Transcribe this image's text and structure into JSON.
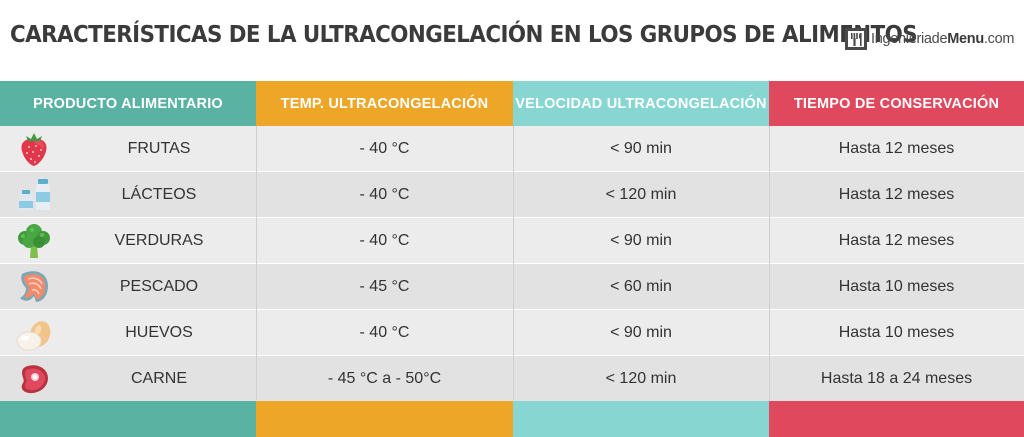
{
  "title": "CARACTERÍSTICAS DE LA ULTRACONGELACIÓN EN LOS GRUPOS DE ALIMENTOS",
  "logo": {
    "prefix": "Ingenieriade",
    "bold": "Menu",
    "suffix": ".com"
  },
  "colors": {
    "teal": "#5ab2a2",
    "orange": "#eda628",
    "aqua": "#88d6d2",
    "red": "#e0485e"
  },
  "headers": [
    "PRODUCTO ALIMENTARIO",
    "TEMP. ULTRACONGELACIÓN",
    "VELOCIDAD ULTRACONGELACIÓN",
    "TIEMPO DE CONSERVACIÓN"
  ],
  "rows": [
    {
      "icon": "strawberry-icon",
      "product": "FRUTAS",
      "temp": "- 40 °C",
      "speed": "< 90 min",
      "storage": "Hasta 12 meses"
    },
    {
      "icon": "milk-bottles-icon",
      "product": "LÁCTEOS",
      "temp": "- 40 °C",
      "speed": "< 120 min",
      "storage": "Hasta 12 meses"
    },
    {
      "icon": "broccoli-icon",
      "product": "VERDURAS",
      "temp": "- 40 °C",
      "speed": "< 90 min",
      "storage": "Hasta 12 meses"
    },
    {
      "icon": "salmon-steak-icon",
      "product": "PESCADO",
      "temp": "- 45 °C",
      "speed": "< 60 min",
      "storage": "Hasta 10 meses"
    },
    {
      "icon": "eggs-icon",
      "product": "HUEVOS",
      "temp": "- 40 °C",
      "speed": "< 90 min",
      "storage": "Hasta 10 meses"
    },
    {
      "icon": "meat-steak-icon",
      "product": "CARNE",
      "temp": "- 45 °C a - 50°C",
      "speed": "< 120 min",
      "storage": "Hasta 18 a 24 meses"
    }
  ]
}
